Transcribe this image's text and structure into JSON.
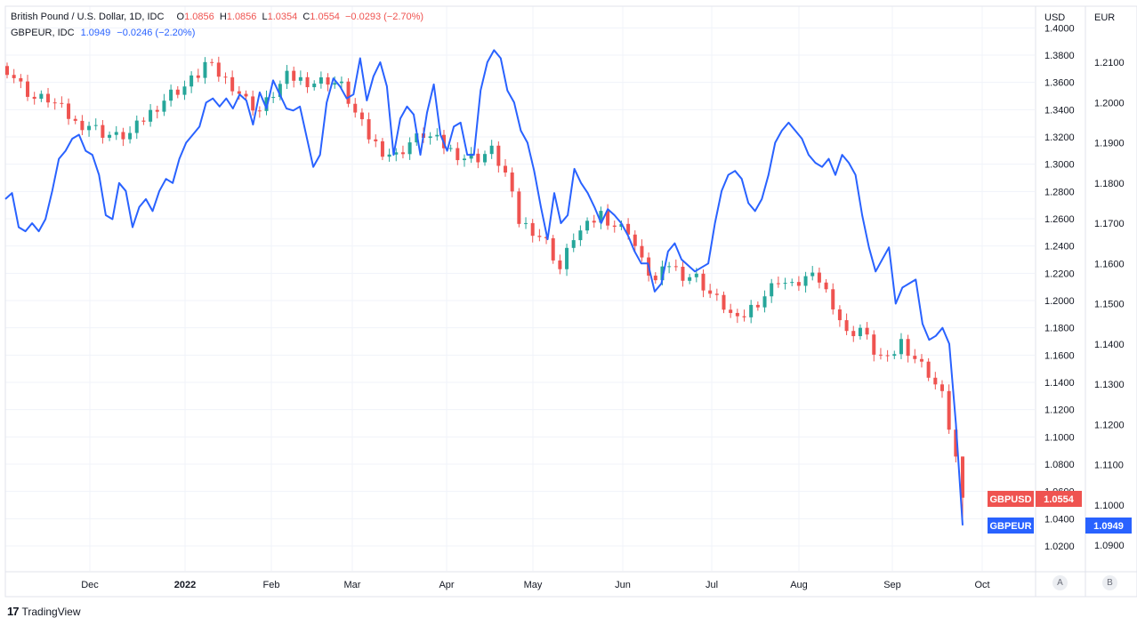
{
  "legend": {
    "main": {
      "title": "British Pound / U.S. Dollar, 1D, IDC",
      "o_label": "O",
      "o_value": "1.0856",
      "h_label": "H",
      "h_value": "1.0856",
      "l_label": "L",
      "l_value": "1.0354",
      "c_label": "C",
      "c_value": "1.0554",
      "change": "−0.0293 (−2.70%)"
    },
    "second": {
      "title": "GBPEUR, IDC",
      "value": "1.0949",
      "change": "−0.0246 (−2.20%)"
    }
  },
  "footer": {
    "brand": "TradingView",
    "logo_glyph": "17"
  },
  "scale_buttons": [
    "A",
    "B"
  ],
  "colors": {
    "up": "#26a69a",
    "down": "#ef5350",
    "line": "#2962ff",
    "grid": "#f0f3fa",
    "axis_text": "#131722"
  },
  "chart_data": {
    "type": "line",
    "x_ticks": [
      "Dec",
      "2022",
      "Feb",
      "Mar",
      "Apr",
      "May",
      "Jun",
      "Jul",
      "Aug",
      "Sep",
      "Oct"
    ],
    "y_left": {
      "label": "USD",
      "ticks": [
        "1.4000",
        "1.3800",
        "1.3600",
        "1.3400",
        "1.3200",
        "1.3000",
        "1.2800",
        "1.2600",
        "1.2400",
        "1.2200",
        "1.2000",
        "1.1800",
        "1.1600",
        "1.1400",
        "1.1200",
        "1.1000",
        "1.0800",
        "1.0600",
        "1.0400",
        "1.0200"
      ],
      "range": [
        1.0,
        1.4
      ]
    },
    "y_right": {
      "label": "EUR",
      "ticks": [
        "1.2100",
        "1.2000",
        "1.1900",
        "1.1800",
        "1.1700",
        "1.1600",
        "1.1500",
        "1.1400",
        "1.1300",
        "1.1200",
        "1.1100",
        "1.1000",
        "1.0900"
      ],
      "range": [
        1.086,
        1.214
      ]
    },
    "series": [
      {
        "name": "GBPUSD",
        "kind": "candlestick",
        "last_value": "1.0554",
        "close_path": [
          [
            0,
            1.37
          ],
          [
            2,
            1.358
          ],
          [
            4,
            1.348
          ],
          [
            6,
            1.348
          ],
          [
            8,
            1.34
          ],
          [
            10,
            1.33
          ],
          [
            12,
            1.329
          ],
          [
            14,
            1.323
          ],
          [
            16,
            1.32
          ],
          [
            18,
            1.322
          ],
          [
            20,
            1.333
          ],
          [
            22,
            1.343
          ],
          [
            24,
            1.352
          ],
          [
            26,
            1.357
          ],
          [
            28,
            1.366
          ],
          [
            29,
            1.374
          ],
          [
            31,
            1.366
          ],
          [
            33,
            1.358
          ],
          [
            35,
            1.347
          ],
          [
            37,
            1.339
          ],
          [
            39,
            1.352
          ],
          [
            41,
            1.364
          ],
          [
            43,
            1.362
          ],
          [
            45,
            1.36
          ],
          [
            47,
            1.362
          ],
          [
            49,
            1.357
          ],
          [
            51,
            1.337
          ],
          [
            53,
            1.32
          ],
          [
            55,
            1.31
          ],
          [
            57,
            1.306
          ],
          [
            59,
            1.316
          ],
          [
            61,
            1.322
          ],
          [
            63,
            1.317
          ],
          [
            65,
            1.31
          ],
          [
            67,
            1.305
          ],
          [
            69,
            1.305
          ],
          [
            71,
            1.31
          ],
          [
            73,
            1.293
          ],
          [
            75,
            1.258
          ],
          [
            77,
            1.252
          ],
          [
            79,
            1.243
          ],
          [
            81,
            1.223
          ],
          [
            83,
            1.247
          ],
          [
            85,
            1.254
          ],
          [
            87,
            1.264
          ],
          [
            89,
            1.255
          ],
          [
            91,
            1.252
          ],
          [
            93,
            1.228
          ],
          [
            95,
            1.214
          ],
          [
            97,
            1.227
          ],
          [
            99,
            1.219
          ],
          [
            101,
            1.217
          ],
          [
            103,
            1.205
          ],
          [
            105,
            1.196
          ],
          [
            107,
            1.184
          ],
          [
            109,
            1.195
          ],
          [
            111,
            1.204
          ],
          [
            113,
            1.216
          ],
          [
            115,
            1.21
          ],
          [
            117,
            1.217
          ],
          [
            119,
            1.215
          ],
          [
            121,
            1.198
          ],
          [
            123,
            1.175
          ],
          [
            125,
            1.18
          ],
          [
            127,
            1.163
          ],
          [
            129,
            1.155
          ],
          [
            131,
            1.17
          ],
          [
            133,
            1.158
          ],
          [
            135,
            1.147
          ],
          [
            137,
            1.13
          ],
          [
            139,
            1.086
          ],
          [
            140,
            1.055
          ]
        ]
      },
      {
        "name": "GBPEUR",
        "kind": "line",
        "last_value": "1.0949",
        "points": [
          [
            0,
            1.176
          ],
          [
            1,
            1.1775
          ],
          [
            2,
            1.169
          ],
          [
            3,
            1.168
          ],
          [
            4,
            1.17
          ],
          [
            5,
            1.168
          ],
          [
            6,
            1.171
          ],
          [
            7,
            1.178
          ],
          [
            8,
            1.186
          ],
          [
            9,
            1.188
          ],
          [
            10,
            1.191
          ],
          [
            11,
            1.192
          ],
          [
            12,
            1.188
          ],
          [
            13,
            1.187
          ],
          [
            14,
            1.182
          ],
          [
            15,
            1.172
          ],
          [
            16,
            1.171
          ],
          [
            17,
            1.18
          ],
          [
            18,
            1.178
          ],
          [
            19,
            1.169
          ],
          [
            20,
            1.174
          ],
          [
            21,
            1.176
          ],
          [
            22,
            1.173
          ],
          [
            23,
            1.178
          ],
          [
            24,
            1.181
          ],
          [
            25,
            1.18
          ],
          [
            26,
            1.186
          ],
          [
            27,
            1.19
          ],
          [
            28,
            1.192
          ],
          [
            29,
            1.194
          ],
          [
            30,
            1.2
          ],
          [
            31,
            1.201
          ],
          [
            32,
            1.199
          ],
          [
            33,
            1.201
          ],
          [
            34,
            1.1985
          ],
          [
            35,
            1.202
          ],
          [
            36,
            1.2005
          ],
          [
            37,
            1.1945
          ],
          [
            38,
            1.2025
          ],
          [
            39,
            1.1985
          ],
          [
            40,
            1.2055
          ],
          [
            41,
            1.202
          ],
          [
            42,
            1.1985
          ],
          [
            43,
            1.198
          ],
          [
            44,
            1.199
          ],
          [
            45,
            1.1915
          ],
          [
            46,
            1.184
          ],
          [
            47,
            1.187
          ],
          [
            48,
            1.2
          ],
          [
            49,
            1.206
          ],
          [
            50,
            1.204
          ],
          [
            51,
            1.201
          ],
          [
            52,
            1.202
          ],
          [
            53,
            1.211
          ],
          [
            54,
            1.2005
          ],
          [
            55,
            1.2065
          ],
          [
            56,
            1.21
          ],
          [
            57,
            1.204
          ],
          [
            58,
            1.187
          ],
          [
            59,
            1.196
          ],
          [
            60,
            1.199
          ],
          [
            61,
            1.197
          ],
          [
            62,
            1.187
          ],
          [
            63,
            1.1975
          ],
          [
            64,
            1.2045
          ],
          [
            65,
            1.192
          ],
          [
            66,
            1.188
          ],
          [
            67,
            1.194
          ],
          [
            68,
            1.195
          ],
          [
            69,
            1.187
          ],
          [
            70,
            1.187
          ],
          [
            71,
            1.203
          ],
          [
            72,
            1.21
          ],
          [
            73,
            1.213
          ],
          [
            74,
            1.211
          ],
          [
            75,
            1.203
          ],
          [
            76,
            1.2
          ],
          [
            77,
            1.193
          ],
          [
            78,
            1.19
          ],
          [
            79,
            1.183
          ],
          [
            80,
            1.174
          ],
          [
            81,
            1.166
          ],
          [
            82,
            1.1775
          ],
          [
            83,
            1.17
          ],
          [
            84,
            1.172
          ],
          [
            85,
            1.1835
          ],
          [
            86,
            1.18
          ],
          [
            87,
            1.1775
          ],
          [
            88,
            1.174
          ],
          [
            89,
            1.17
          ],
          [
            90,
            1.1735
          ],
          [
            91,
            1.172
          ],
          [
            92,
            1.17
          ],
          [
            93,
            1.167
          ],
          [
            94,
            1.163
          ],
          [
            95,
            1.16
          ],
          [
            96,
            1.16
          ],
          [
            97,
            1.153
          ],
          [
            98,
            1.155
          ],
          [
            99,
            1.163
          ],
          [
            100,
            1.165
          ],
          [
            101,
            1.161
          ],
          [
            102,
            1.1595
          ],
          [
            103,
            1.158
          ],
          [
            104,
            1.159
          ],
          [
            105,
            1.16
          ],
          [
            106,
            1.17
          ],
          [
            107,
            1.178
          ],
          [
            108,
            1.182
          ],
          [
            109,
            1.183
          ],
          [
            110,
            1.181
          ],
          [
            111,
            1.175
          ],
          [
            112,
            1.173
          ],
          [
            113,
            1.176
          ],
          [
            114,
            1.182
          ],
          [
            115,
            1.19
          ],
          [
            116,
            1.193
          ],
          [
            117,
            1.195
          ],
          [
            118,
            1.193
          ],
          [
            119,
            1.191
          ],
          [
            120,
            1.187
          ],
          [
            121,
            1.185
          ],
          [
            122,
            1.184
          ],
          [
            123,
            1.186
          ],
          [
            124,
            1.182
          ],
          [
            125,
            1.187
          ],
          [
            126,
            1.185
          ],
          [
            127,
            1.182
          ],
          [
            128,
            1.172
          ],
          [
            129,
            1.164
          ],
          [
            130,
            1.158
          ],
          [
            131,
            1.161
          ],
          [
            132,
            1.164
          ],
          [
            133,
            1.15
          ],
          [
            134,
            1.154
          ],
          [
            135,
            1.155
          ],
          [
            136,
            1.156
          ],
          [
            137,
            1.145
          ],
          [
            138,
            1.141
          ],
          [
            139,
            1.142
          ],
          [
            140,
            1.144
          ],
          [
            141,
            1.14
          ],
          [
            142,
            1.12
          ],
          [
            143,
            1.0949
          ]
        ]
      }
    ]
  }
}
